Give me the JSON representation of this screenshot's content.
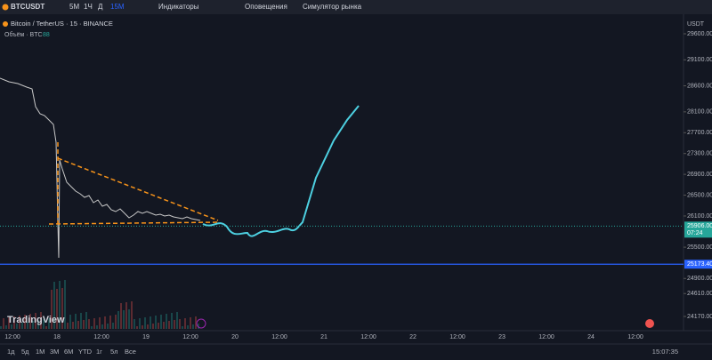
{
  "toolbar": {
    "symbol": "BTCUSDT",
    "intervals": [
      "5М",
      "1Ч",
      "Д",
      "15М"
    ],
    "indicators": "Индикаторы",
    "alerts": "Оповещения",
    "replay": "Симулятор рынка"
  },
  "legend": {
    "instrument": "Bitcoin / TetherUS · 15 · BINANCE",
    "volume": "Объём · BTC",
    "volume_value": "88"
  },
  "logo": "TradingView",
  "chart_data": {
    "type": "price-axis",
    "unit": "USDT",
    "yticks": [
      {
        "value": 29600,
        "label": "29600.00"
      },
      {
        "value": 29100,
        "label": "29100.00"
      },
      {
        "value": 28600,
        "label": "28600.00"
      },
      {
        "value": 28100,
        "label": "28100.00"
      },
      {
        "value": 27700,
        "label": "27700.00"
      },
      {
        "value": 27300,
        "label": "27300.00"
      },
      {
        "value": 26900,
        "label": "26900.00"
      },
      {
        "value": 26500,
        "label": "26500.00"
      },
      {
        "value": 26100,
        "label": "26100.00"
      },
      {
        "value": 25500,
        "label": "25500.00"
      },
      {
        "value": 24900,
        "label": "24900.00"
      },
      {
        "value": 24610,
        "label": "24610.00"
      },
      {
        "value": 24170,
        "label": "24170.00"
      }
    ],
    "ylim": [
      24170,
      29600
    ],
    "last_price": {
      "value": 25906,
      "label": "25906.00",
      "countdown": "07:24"
    },
    "level": {
      "value": 25173.4,
      "label": "25173.40"
    },
    "categories": [
      "12:00",
      "18",
      "12:00",
      "19",
      "12:00",
      "20",
      "12:00",
      "21",
      "12:00",
      "22",
      "12:00",
      "23",
      "12:00",
      "24",
      "12:00"
    ]
  },
  "footer": {
    "ranges": [
      "1д",
      "5д",
      "1М",
      "3М",
      "6М",
      "YTD",
      "1г",
      "5л",
      "Все"
    ],
    "clock": "15:07:35"
  }
}
